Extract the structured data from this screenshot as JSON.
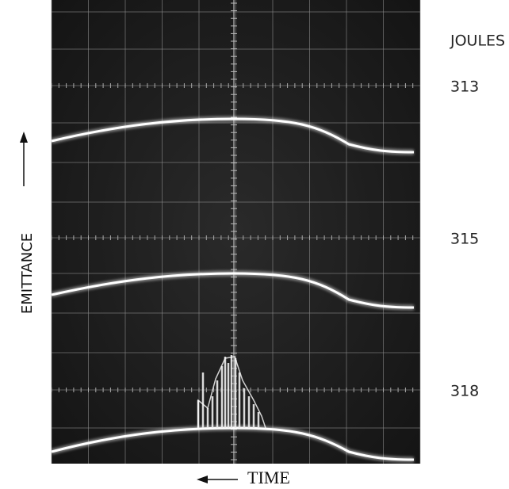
{
  "header": "JOULES",
  "traces": [
    {
      "label": "313"
    },
    {
      "label": "315"
    },
    {
      "label": "318"
    }
  ],
  "y_axis_label": "EMITTANCE",
  "x_axis_label": "TIME"
}
